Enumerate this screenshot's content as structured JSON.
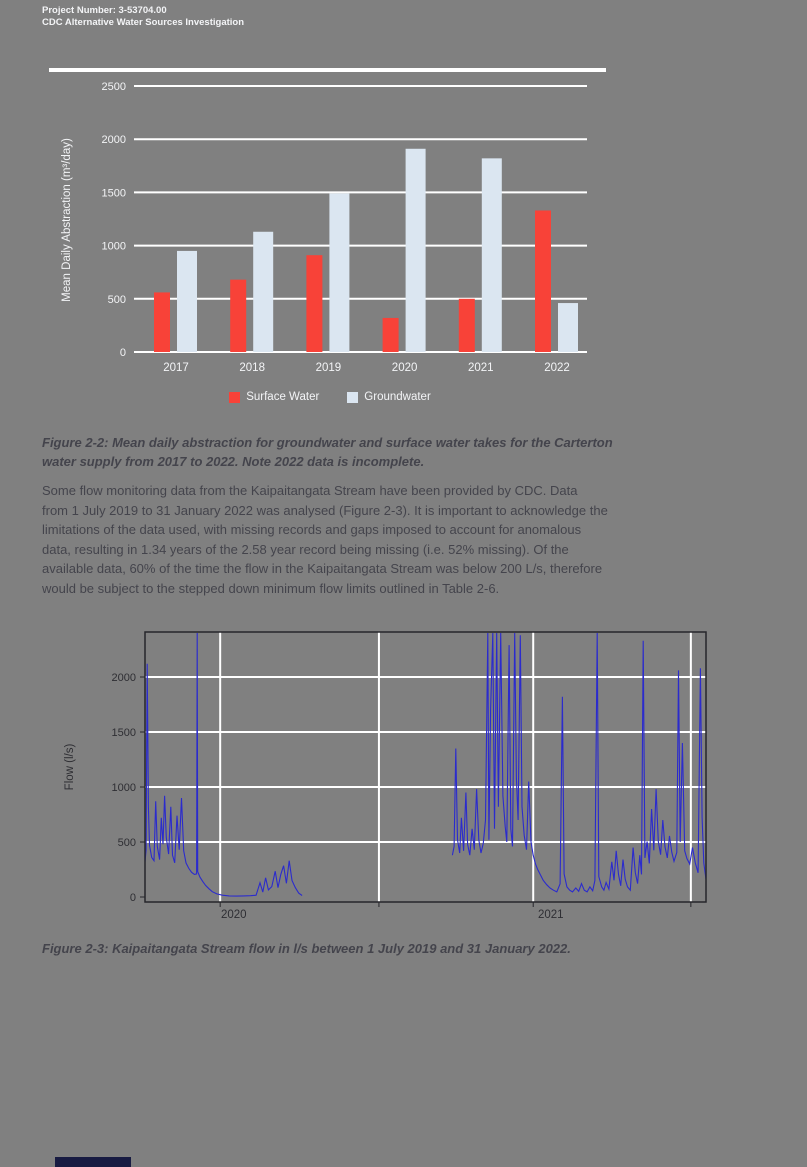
{
  "header": {
    "project_number": "Project Number: 3-53704.00",
    "report_title": "CDC Alternative Water Sources Investigation"
  },
  "figure2_2": {
    "caption_lines": [
      "Figure 2-2: Mean daily abstraction for groundwater and surface water takes for the Carterton",
      "water supply from 2017 to 2022. Note 2022 data is incomplete."
    ]
  },
  "paragraph": {
    "lines": [
      "Some flow monitoring data from the Kaipaitangata Stream have been provided by CDC. Data",
      "from 1 July 2019 to 31 January 2022 was analysed (Figure 2-3). It is important to acknowledge the",
      "limitations of the data used, with missing records and gaps imposed to account for anomalous",
      "data, resulting in 1.34 years of the 2.58 year record being missing (i.e. 52% missing). Of the",
      "available data, 60% of the time the flow in the Kaipaitangata Stream was below 200 L/s, therefore",
      "would be subject to the stepped down minimum flow limits outlined in Table 2-6."
    ]
  },
  "figure2_3": {
    "caption_lines": [
      "Figure 2-3: Kaipaitangata Stream flow in l/s between 1 July 2019 and 31 January 2022."
    ]
  },
  "colors": {
    "page_background": "#808080",
    "chart_text_light": "#f3f4f6",
    "chart_text_dark": "#2e2e33",
    "gridline": "#ffffff",
    "surface_water_red": "#f84238",
    "groundwater_blue": "#dbe6f1",
    "flow_line_blue": "#2b2bcd",
    "footer_navy": "#181b42"
  },
  "chart_data": [
    {
      "type": "bar",
      "title": "",
      "categories": [
        "2017",
        "2018",
        "2019",
        "2020",
        "2021",
        "2022"
      ],
      "series": [
        {
          "name": "Surface Water",
          "color": "#f84238",
          "values": [
            560,
            680,
            910,
            320,
            500,
            1330
          ]
        },
        {
          "name": "Groundwater",
          "color": "#dbe6f1",
          "values": [
            950,
            1130,
            1490,
            1910,
            1820,
            460
          ]
        }
      ],
      "xlabel": "",
      "ylabel": "Mean Daily Abstraction (m³/day)",
      "yticks": [
        0,
        500,
        1000,
        1500,
        2000,
        2500
      ],
      "ylim": [
        0,
        2500
      ],
      "grid": "horizontal white gridlines, gray (transparent) background",
      "legend_position": "bottom"
    },
    {
      "type": "line",
      "title": "",
      "xlabel": "",
      "ylabel": "Flow (l/s)",
      "yticks": [
        0,
        500,
        1000,
        1500,
        2000
      ],
      "ylim": [
        0,
        2400
      ],
      "x_range_note": "1 July 2019 to 31 January 2022; gap in record (missing data) near middle",
      "xticks": [
        {
          "label": "2020",
          "fx": 0.144
        },
        {
          "label": "2021",
          "fx": 0.709
        }
      ],
      "vgrid_fx": [
        0.134,
        0.417,
        0.692,
        0.973
      ],
      "line_color": "#2b2bcd",
      "points": [
        [
          0.0,
          320
        ],
        [
          0.002,
          430
        ],
        [
          0.004,
          2120
        ],
        [
          0.006,
          820
        ],
        [
          0.008,
          470
        ],
        [
          0.012,
          360
        ],
        [
          0.016,
          330
        ],
        [
          0.019,
          870
        ],
        [
          0.022,
          460
        ],
        [
          0.026,
          340
        ],
        [
          0.029,
          720
        ],
        [
          0.032,
          480
        ],
        [
          0.035,
          920
        ],
        [
          0.038,
          540
        ],
        [
          0.042,
          390
        ],
        [
          0.046,
          820
        ],
        [
          0.049,
          380
        ],
        [
          0.053,
          310
        ],
        [
          0.057,
          740
        ],
        [
          0.061,
          430
        ],
        [
          0.065,
          900
        ],
        [
          0.069,
          420
        ],
        [
          0.073,
          310
        ],
        [
          0.078,
          260
        ],
        [
          0.083,
          225
        ],
        [
          0.088,
          205
        ],
        [
          0.092,
          210
        ],
        [
          0.093,
          2400
        ],
        [
          0.094,
          230
        ],
        [
          0.098,
          180
        ],
        [
          0.103,
          140
        ],
        [
          0.108,
          105
        ],
        [
          0.114,
          75
        ],
        [
          0.12,
          48
        ],
        [
          0.128,
          28
        ],
        [
          0.138,
          16
        ],
        [
          0.15,
          10
        ],
        [
          0.163,
          8
        ],
        [
          0.176,
          10
        ],
        [
          0.188,
          12
        ],
        [
          0.198,
          16
        ],
        [
          0.205,
          130
        ],
        [
          0.21,
          45
        ],
        [
          0.215,
          175
        ],
        [
          0.22,
          65
        ],
        [
          0.226,
          95
        ],
        [
          0.232,
          235
        ],
        [
          0.237,
          85
        ],
        [
          0.242,
          205
        ],
        [
          0.247,
          285
        ],
        [
          0.252,
          125
        ],
        [
          0.257,
          330
        ],
        [
          0.262,
          150
        ],
        [
          0.268,
          85
        ],
        [
          0.274,
          35
        ],
        [
          0.28,
          14
        ],
        [
          0.284,
          null
        ],
        [
          0.548,
          380
        ],
        [
          0.551,
          460
        ],
        [
          0.554,
          1350
        ],
        [
          0.557,
          520
        ],
        [
          0.561,
          400
        ],
        [
          0.564,
          720
        ],
        [
          0.568,
          420
        ],
        [
          0.572,
          950
        ],
        [
          0.575,
          480
        ],
        [
          0.579,
          380
        ],
        [
          0.583,
          620
        ],
        [
          0.587,
          430
        ],
        [
          0.591,
          980
        ],
        [
          0.595,
          520
        ],
        [
          0.599,
          400
        ],
        [
          0.603,
          490
        ],
        [
          0.607,
          700
        ],
        [
          0.611,
          2400
        ],
        [
          0.613,
          520
        ],
        [
          0.616,
          1700
        ],
        [
          0.62,
          2400
        ],
        [
          0.623,
          620
        ],
        [
          0.627,
          2400
        ],
        [
          0.63,
          820
        ],
        [
          0.634,
          2400
        ],
        [
          0.638,
          920
        ],
        [
          0.642,
          640
        ],
        [
          0.645,
          500
        ],
        [
          0.649,
          2290
        ],
        [
          0.652,
          620
        ],
        [
          0.655,
          460
        ],
        [
          0.659,
          2400
        ],
        [
          0.662,
          1080
        ],
        [
          0.665,
          700
        ],
        [
          0.669,
          2380
        ],
        [
          0.672,
          820
        ],
        [
          0.676,
          560
        ],
        [
          0.68,
          430
        ],
        [
          0.684,
          1050
        ],
        [
          0.688,
          500
        ],
        [
          0.692,
          380
        ],
        [
          0.696,
          300
        ],
        [
          0.7,
          250
        ],
        [
          0.705,
          200
        ],
        [
          0.71,
          150
        ],
        [
          0.716,
          112
        ],
        [
          0.722,
          82
        ],
        [
          0.728,
          62
        ],
        [
          0.734,
          46
        ],
        [
          0.74,
          120
        ],
        [
          0.744,
          1820
        ],
        [
          0.747,
          210
        ],
        [
          0.752,
          92
        ],
        [
          0.757,
          62
        ],
        [
          0.762,
          46
        ],
        [
          0.768,
          82
        ],
        [
          0.773,
          52
        ],
        [
          0.778,
          122
        ],
        [
          0.783,
          62
        ],
        [
          0.788,
          46
        ],
        [
          0.793,
          92
        ],
        [
          0.798,
          56
        ],
        [
          0.802,
          150
        ],
        [
          0.806,
          2400
        ],
        [
          0.809,
          185
        ],
        [
          0.814,
          92
        ],
        [
          0.818,
          62
        ],
        [
          0.822,
          132
        ],
        [
          0.827,
          72
        ],
        [
          0.832,
          320
        ],
        [
          0.836,
          152
        ],
        [
          0.84,
          420
        ],
        [
          0.844,
          205
        ],
        [
          0.848,
          102
        ],
        [
          0.852,
          340
        ],
        [
          0.856,
          162
        ],
        [
          0.86,
          92
        ],
        [
          0.865,
          62
        ],
        [
          0.87,
          450
        ],
        [
          0.874,
          222
        ],
        [
          0.878,
          122
        ],
        [
          0.882,
          380
        ],
        [
          0.885,
          205
        ],
        [
          0.888,
          2330
        ],
        [
          0.891,
          355
        ],
        [
          0.895,
          505
        ],
        [
          0.899,
          305
        ],
        [
          0.903,
          800
        ],
        [
          0.907,
          425
        ],
        [
          0.911,
          980
        ],
        [
          0.915,
          505
        ],
        [
          0.919,
          385
        ],
        [
          0.923,
          700
        ],
        [
          0.927,
          455
        ],
        [
          0.931,
          355
        ],
        [
          0.935,
          555
        ],
        [
          0.939,
          405
        ],
        [
          0.943,
          325
        ],
        [
          0.948,
          405
        ],
        [
          0.951,
          2060
        ],
        [
          0.954,
          500
        ],
        [
          0.958,
          1400
        ],
        [
          0.962,
          420
        ],
        [
          0.966,
          350
        ],
        [
          0.971,
          300
        ],
        [
          0.976,
          450
        ],
        [
          0.981,
          310
        ],
        [
          0.986,
          220
        ],
        [
          0.99,
          2080
        ],
        [
          0.993,
          720
        ],
        [
          0.996,
          310
        ],
        [
          1.0,
          160
        ]
      ]
    }
  ]
}
